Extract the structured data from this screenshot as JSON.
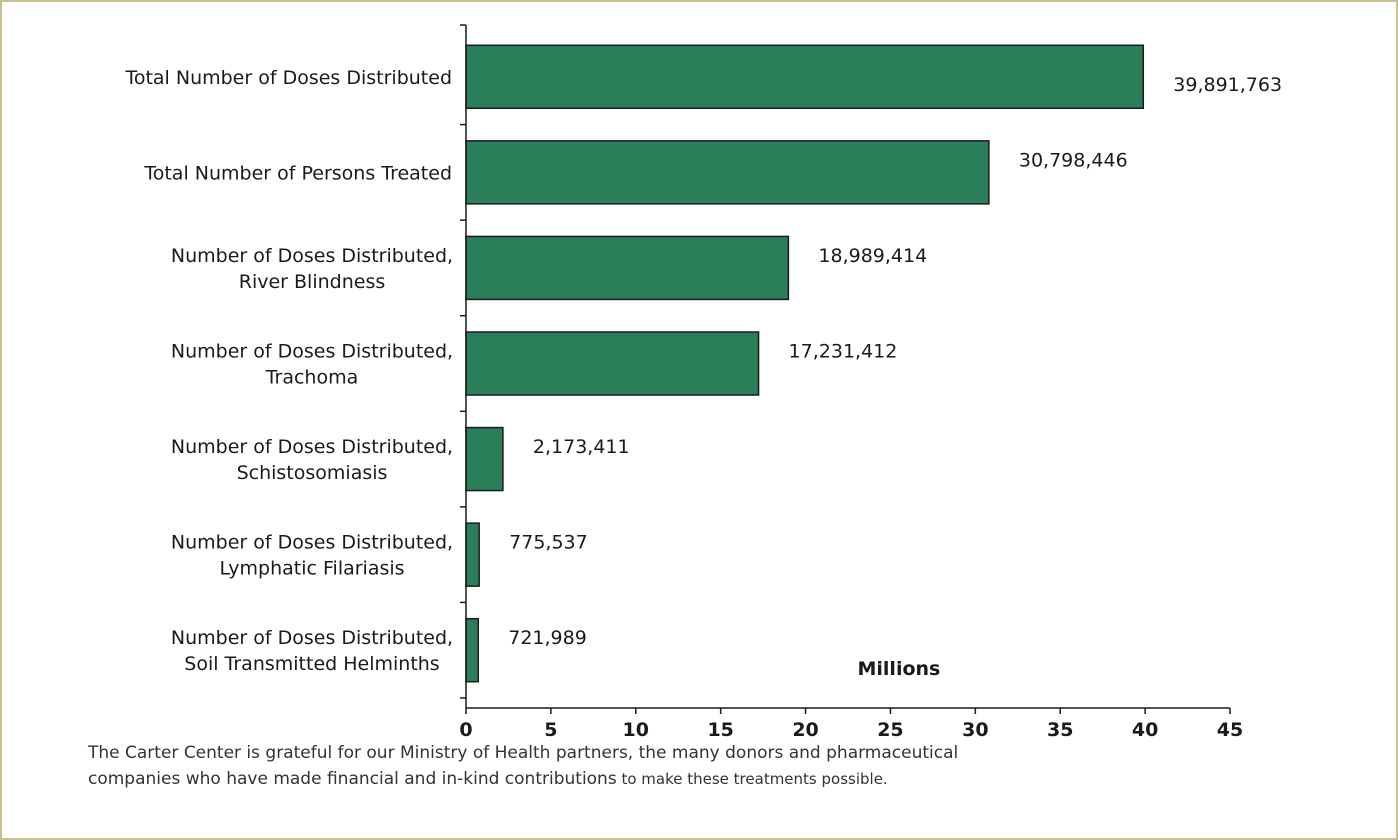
{
  "chart_data": {
    "type": "bar",
    "orientation": "horizontal",
    "categories": [
      [
        "Total Number of Doses Distributed"
      ],
      [
        "Total Number of Persons Treated"
      ],
      [
        "Number of Doses Distributed,",
        "River Blindness"
      ],
      [
        "Number of Doses Distributed,",
        "Trachoma"
      ],
      [
        "Number of Doses Distributed,",
        "Schistosomiasis"
      ],
      [
        "Number of Doses Distributed,",
        "Lymphatic Filariasis"
      ],
      [
        "Number of Doses Distributed,",
        "Soil Transmitted Helminths"
      ]
    ],
    "values": [
      39891763,
      30798446,
      18989414,
      17231412,
      2173411,
      775537,
      721989
    ],
    "data_labels": [
      "39,891,763",
      "30,798,446",
      "18,989,414",
      "17,231,412",
      "2,173,411",
      "775,537",
      "721,989"
    ],
    "unit_label": "Millions",
    "xlim": [
      0,
      45
    ],
    "xticks": [
      "0",
      "5",
      "10",
      "15",
      "20",
      "25",
      "30",
      "35",
      "40",
      "45"
    ],
    "bar_color": "#2a7f5a",
    "grid": false
  },
  "caption": {
    "line1": "The Carter Center is grateful for our Ministry of Health partners, the many donors and pharmaceutical",
    "line2_a": "companies who have made financial and in-kind contributions",
    "line2_b": " to make these treatments possible."
  }
}
